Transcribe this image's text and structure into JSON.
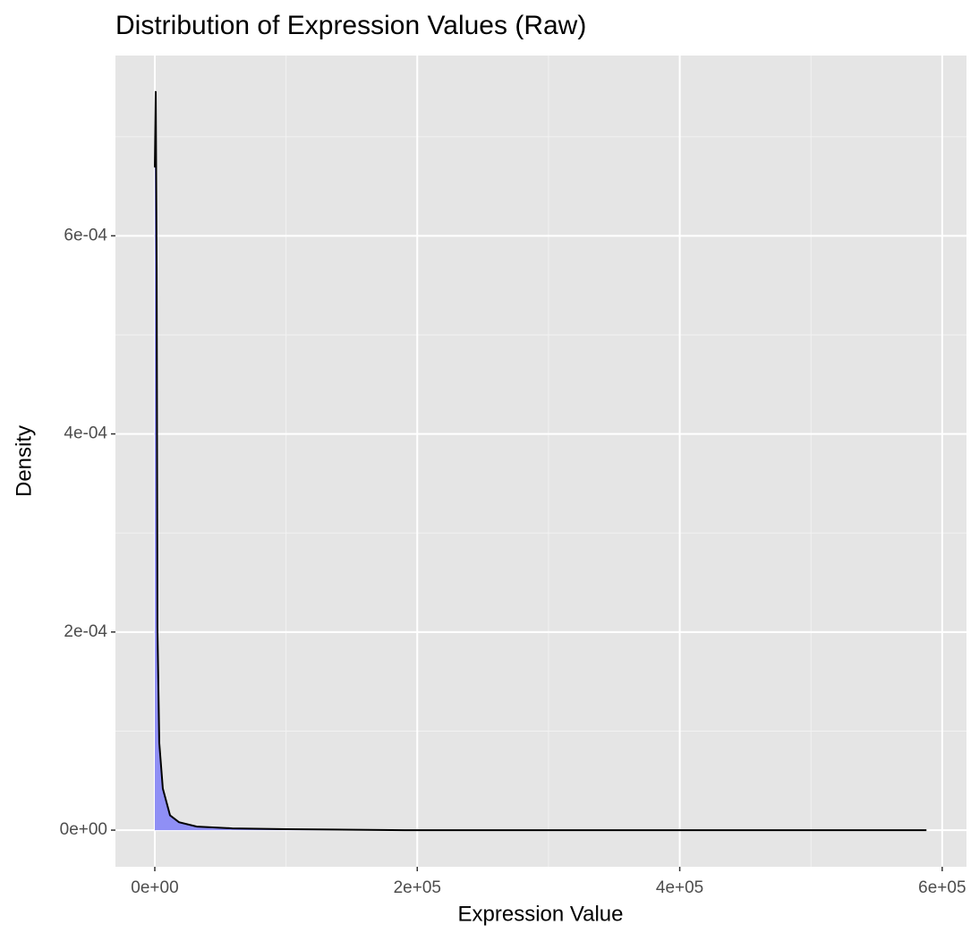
{
  "chart_data": {
    "type": "density",
    "title": "Distribution of Expression Values (Raw)",
    "x_label": "Expression Value",
    "y_label": "Density",
    "x": [
      0,
      700,
      1400,
      2000,
      3400,
      6100,
      11600,
      18400,
      32000,
      59000,
      100000,
      190000,
      588000
    ],
    "values": [
      0.000669,
      0.000746,
      0.000567,
      0.000205,
      8.8e-05,
      4.2e-05,
      1.5e-05,
      8e-06,
      3.6e-06,
      1.8e-06,
      1e-06,
      0,
      0
    ],
    "fill": "#8f8ff5",
    "color": "#000000",
    "xlim": [
      -30000,
      618500
    ],
    "ylim": [
      -3.7e-05,
      0.000782
    ],
    "xticks": [
      {
        "value": 0,
        "label": "0e+00"
      },
      {
        "value": 200000,
        "label": "2e+05"
      },
      {
        "value": 400000,
        "label": "4e+05"
      },
      {
        "value": 600000,
        "label": "6e+05"
      }
    ],
    "yticks": [
      {
        "value": 0,
        "label": "0e+00"
      },
      {
        "value": 0.0002,
        "label": "2e-04"
      },
      {
        "value": 0.0004,
        "label": "4e-04"
      },
      {
        "value": 0.0006,
        "label": "6e-04"
      }
    ],
    "xminor": [
      100000,
      300000,
      500000
    ],
    "yminor": [
      0.0001,
      0.0003,
      0.0005,
      0.0007
    ],
    "grid": true
  }
}
